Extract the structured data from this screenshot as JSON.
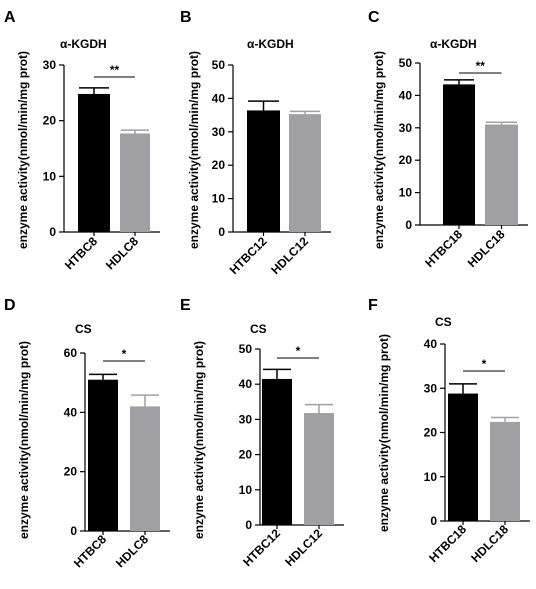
{
  "colors": {
    "black_bar": "#000000",
    "gray_bar": "#a0a0a4",
    "axis": "#000000"
  },
  "chart_data": [
    {
      "panel": "A",
      "type": "bar",
      "title": "α-KGDH",
      "categories": [
        "HTBC8",
        "HDLC8"
      ],
      "values": [
        24.8,
        17.7
      ],
      "errors": [
        1.1,
        0.6
      ],
      "bar_colors": [
        "#000000",
        "#a0a0a4"
      ],
      "ylabel": "enzyme activity(nmol/min/mg prot)",
      "ylim": [
        0,
        30
      ],
      "yticks": [
        "0",
        "10",
        "20",
        "30"
      ],
      "significance": "**",
      "grid": false
    },
    {
      "panel": "B",
      "type": "bar",
      "title": "α-KGDH",
      "categories": [
        "HTBC12",
        "HDLC12"
      ],
      "values": [
        36.4,
        35.3
      ],
      "errors": [
        2.8,
        0.8
      ],
      "bar_colors": [
        "#000000",
        "#a0a0a4"
      ],
      "ylabel": "enzyme activity(nmol/min/mg prot)",
      "ylim": [
        0,
        50
      ],
      "yticks": [
        "0",
        "10",
        "20",
        "30",
        "40",
        "50"
      ],
      "significance": "",
      "grid": false
    },
    {
      "panel": "C",
      "type": "bar",
      "title": "α-KGDH",
      "categories": [
        "HTBC18",
        "HDLC18"
      ],
      "values": [
        43.4,
        31.0
      ],
      "errors": [
        1.4,
        0.7
      ],
      "bar_colors": [
        "#000000",
        "#a0a0a4"
      ],
      "ylabel": "enzyme activity(nmol/min/mg prot)",
      "ylim": [
        0,
        50
      ],
      "yticks": [
        "0",
        "10",
        "20",
        "30",
        "40",
        "50"
      ],
      "significance": "**",
      "grid": false
    },
    {
      "panel": "D",
      "type": "bar",
      "title": "CS",
      "categories": [
        "HTBC8",
        "HDLC8"
      ],
      "values": [
        51.0,
        42.0
      ],
      "errors": [
        1.8,
        3.8
      ],
      "bar_colors": [
        "#000000",
        "#a0a0a4"
      ],
      "ylabel": "enzyme activity(nmol/min/mg prot)",
      "ylim": [
        0,
        60
      ],
      "yticks": [
        "0",
        "20",
        "40",
        "60"
      ],
      "significance": "*",
      "grid": false
    },
    {
      "panel": "E",
      "type": "bar",
      "title": "CS",
      "categories": [
        "HTBC12",
        "HDLC12"
      ],
      "values": [
        41.5,
        31.8
      ],
      "errors": [
        2.7,
        2.4
      ],
      "bar_colors": [
        "#000000",
        "#a0a0a4"
      ],
      "ylabel": "enzyme activity(nmol/min/mg prot)",
      "ylim": [
        0,
        50
      ],
      "yticks": [
        "0",
        "10",
        "20",
        "30",
        "40",
        "50"
      ],
      "significance": "*",
      "grid": false
    },
    {
      "panel": "F",
      "type": "bar",
      "title": "CS",
      "categories": [
        "HTBC18",
        "HDLC18"
      ],
      "values": [
        28.8,
        22.4
      ],
      "errors": [
        2.2,
        1.0
      ],
      "bar_colors": [
        "#000000",
        "#a0a0a4"
      ],
      "ylabel": "enzyme activity(nmol/min/mg prot)",
      "ylim": [
        0,
        40
      ],
      "yticks": [
        "0",
        "10",
        "20",
        "30",
        "40"
      ],
      "significance": "*",
      "grid": false
    }
  ]
}
